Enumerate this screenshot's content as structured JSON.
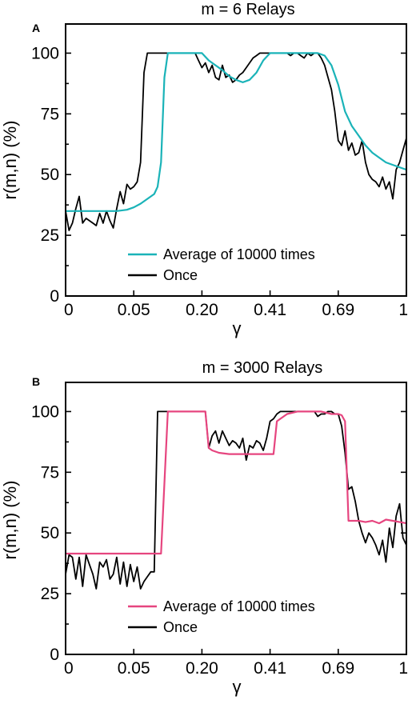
{
  "chart_data": [
    {
      "type": "line",
      "panel_label": "A",
      "title": "m = 6 Relays",
      "xlabel": "γ",
      "ylabel": "r(m,n) (%)",
      "x_tick_labels": [
        "0",
        "0.05",
        "0.20",
        "0.41",
        "0.69",
        "1"
      ],
      "y_ticks": [
        0,
        25,
        50,
        75,
        100
      ],
      "ylim": [
        0,
        112
      ],
      "grid": false,
      "legend_position": "lower-center",
      "x_note": "x values are sample index 0-100 along a non-linear γ axis; tick labels placed at 0,20,40,60,80,100",
      "series": [
        {
          "name": "Average of 10000 times",
          "color": "#1ab3b8",
          "x": [
            0,
            5,
            10,
            15,
            18,
            20,
            22,
            24,
            26,
            27,
            28,
            29,
            30,
            32,
            34,
            36,
            38,
            40,
            42,
            44,
            46,
            48,
            50,
            52,
            54,
            56,
            58,
            60,
            62,
            64,
            66,
            68,
            70,
            72,
            74,
            76,
            78,
            80,
            82,
            84,
            86,
            88,
            90,
            92,
            94,
            96,
            98,
            100
          ],
          "values": [
            35,
            35,
            35,
            35,
            35.5,
            36.5,
            38,
            40,
            42,
            45,
            55,
            90,
            100,
            100,
            100,
            100,
            100,
            100,
            97,
            95,
            93,
            90.5,
            89,
            88,
            89,
            92,
            97,
            100,
            100,
            100,
            100,
            100,
            100,
            100,
            100,
            99,
            95,
            87,
            76,
            70,
            66,
            62,
            59,
            57,
            55,
            54,
            53,
            52
          ]
        },
        {
          "name": "Once",
          "color": "#000000",
          "x": [
            0,
            1,
            2,
            3,
            4,
            5,
            6,
            7,
            8,
            9,
            10,
            11,
            12,
            13,
            14,
            15,
            16,
            17,
            18,
            19,
            20,
            21,
            22,
            23,
            24,
            25,
            26,
            27,
            28,
            29,
            30,
            31,
            32,
            33,
            34,
            35,
            36,
            37,
            38,
            39,
            40,
            41,
            42,
            43,
            44,
            45,
            46,
            47,
            48,
            49,
            50,
            51,
            52,
            53,
            54,
            55,
            56,
            57,
            58,
            59,
            60,
            61,
            62,
            63,
            64,
            65,
            66,
            67,
            68,
            69,
            70,
            71,
            72,
            73,
            74,
            75,
            76,
            77,
            78,
            79,
            80,
            81,
            82,
            83,
            84,
            85,
            86,
            87,
            88,
            89,
            90,
            91,
            92,
            93,
            94,
            95,
            96,
            97,
            98,
            99,
            100
          ],
          "values": [
            35,
            27,
            30,
            36,
            41,
            30,
            32,
            31,
            30,
            29,
            34,
            30,
            35,
            31,
            28,
            36,
            43,
            38,
            46,
            44,
            45,
            47,
            55,
            92,
            100,
            100,
            100,
            100,
            100,
            100,
            100,
            100,
            100,
            100,
            100,
            100,
            100,
            100,
            100,
            97,
            94,
            96,
            92,
            95,
            90,
            89,
            95,
            90,
            91,
            88,
            89,
            91,
            92,
            94,
            96,
            98,
            99,
            100,
            100,
            100,
            100,
            100,
            100,
            100,
            100,
            100,
            99,
            100,
            100,
            99,
            98,
            100,
            99,
            100,
            100,
            98,
            95,
            90,
            85,
            76,
            64,
            62,
            68,
            60,
            63,
            58,
            59,
            64,
            55,
            50,
            48,
            47,
            45,
            49,
            44,
            47,
            40,
            52,
            55,
            60,
            65
          ]
        }
      ]
    },
    {
      "type": "line",
      "panel_label": "B",
      "title": "m = 3000 Relays",
      "xlabel": "γ",
      "ylabel": "r(m,n) (%)",
      "x_tick_labels": [
        "0",
        "0.05",
        "0.20",
        "0.41",
        "0.69",
        "1"
      ],
      "y_ticks": [
        0,
        25,
        50,
        75,
        100
      ],
      "ylim": [
        0,
        112
      ],
      "grid": false,
      "legend_position": "lower-center",
      "x_note": "x values are sample index 0-100 along a non-linear γ axis; tick labels placed at 0,20,40,60,80,100",
      "series": [
        {
          "name": "Average of 10000 times",
          "color": "#e6457f",
          "x": [
            0,
            5,
            10,
            15,
            20,
            25,
            27,
            28,
            30,
            32,
            35,
            38,
            40,
            41,
            42,
            43,
            45,
            48,
            50,
            52,
            55,
            58,
            60,
            61,
            62,
            63,
            65,
            68,
            70,
            72,
            75,
            78,
            80,
            81,
            82,
            83,
            84,
            86,
            88,
            90,
            92,
            94,
            96,
            98,
            100
          ],
          "values": [
            41.5,
            41.5,
            41.5,
            41.5,
            41.5,
            41.5,
            41.5,
            41.5,
            100,
            100,
            100,
            100,
            100,
            100,
            85,
            84,
            83,
            82.5,
            82.5,
            82.5,
            82.5,
            82.5,
            82.5,
            82.5,
            96,
            97,
            99,
            100,
            100,
            100,
            100,
            99,
            99,
            98.5,
            96,
            55,
            55,
            55,
            54.5,
            55,
            54,
            55.5,
            55,
            54.5,
            54
          ]
        },
        {
          "name": "Once",
          "color": "#000000",
          "x": [
            0,
            1,
            2,
            3,
            4,
            5,
            6,
            7,
            8,
            9,
            10,
            11,
            12,
            13,
            14,
            15,
            16,
            17,
            18,
            19,
            20,
            21,
            22,
            23,
            24,
            25,
            26,
            27,
            28,
            29,
            30,
            31,
            32,
            33,
            34,
            35,
            36,
            37,
            38,
            39,
            40,
            41,
            42,
            43,
            44,
            45,
            46,
            47,
            48,
            49,
            50,
            51,
            52,
            53,
            54,
            55,
            56,
            57,
            58,
            59,
            60,
            61,
            62,
            63,
            64,
            65,
            66,
            67,
            68,
            69,
            70,
            71,
            72,
            73,
            74,
            75,
            76,
            77,
            78,
            79,
            80,
            81,
            82,
            83,
            84,
            85,
            86,
            87,
            88,
            89,
            90,
            91,
            92,
            93,
            94,
            95,
            96,
            97,
            98,
            99,
            100
          ],
          "values": [
            33,
            41,
            40,
            31,
            40,
            28,
            41,
            37,
            33,
            27,
            38,
            36,
            39,
            31,
            33,
            40,
            29,
            38,
            28,
            37,
            30,
            36,
            27,
            30,
            32,
            34,
            34,
            100,
            100,
            100,
            100,
            100,
            100,
            100,
            100,
            100,
            100,
            100,
            100,
            100,
            100,
            100,
            85,
            90,
            92,
            87,
            92,
            89,
            86,
            88,
            87,
            85,
            89,
            80,
            86,
            85,
            88,
            87,
            84,
            89,
            96,
            97,
            99,
            100,
            100,
            100,
            100,
            100,
            100,
            100,
            100,
            100,
            100,
            100,
            98,
            99,
            99,
            100,
            100,
            99,
            99,
            94,
            83,
            68,
            69,
            63,
            55,
            50,
            46,
            50,
            48,
            45,
            41,
            47,
            38,
            52,
            44,
            57,
            62,
            48,
            45
          ]
        }
      ]
    }
  ]
}
